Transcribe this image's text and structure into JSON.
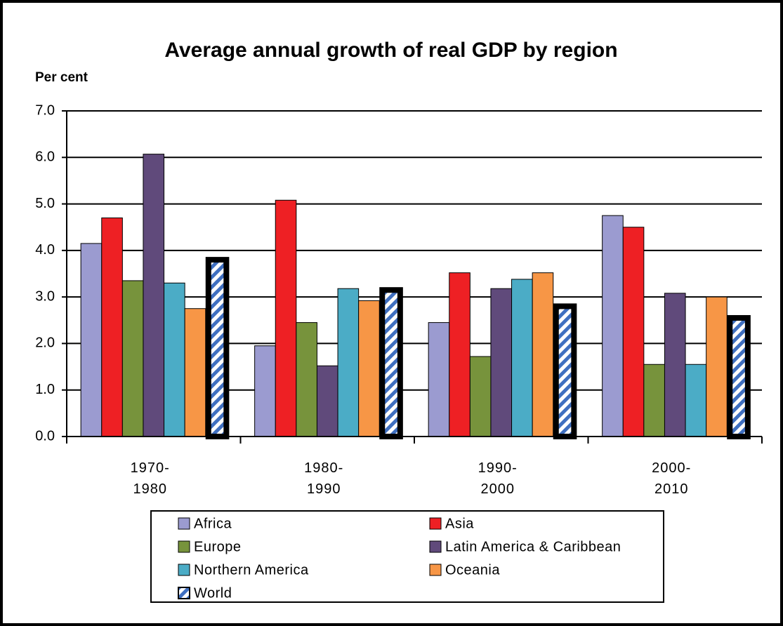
{
  "chart_data": {
    "type": "bar",
    "title": "Average annual growth of real GDP by region",
    "y_axis_label": "Per cent",
    "categories": [
      "1970-1980",
      "1980-1990",
      "1990-2000",
      "2000-2010"
    ],
    "series": [
      {
        "name": "Africa",
        "color": "#9b9bd0",
        "values": [
          4.15,
          1.95,
          2.45,
          4.75
        ]
      },
      {
        "name": "Asia",
        "color": "#ee2024",
        "values": [
          4.7,
          5.08,
          3.52,
          4.5
        ]
      },
      {
        "name": "Europe",
        "color": "#77933c",
        "values": [
          3.35,
          2.45,
          1.72,
          1.55
        ]
      },
      {
        "name": "Latin America & Caribbean",
        "color": "#604a7b",
        "values": [
          6.07,
          1.52,
          3.18,
          3.08
        ]
      },
      {
        "name": "Northern America",
        "color": "#4bacc6",
        "values": [
          3.3,
          3.18,
          3.38,
          1.55
        ]
      },
      {
        "name": "Oceania",
        "color": "#f79646",
        "values": [
          2.75,
          2.92,
          3.52,
          3.0
        ]
      },
      {
        "name": "World",
        "color": "#3f6fc0",
        "pattern": "hatch",
        "values": [
          3.8,
          3.15,
          2.8,
          2.55
        ]
      }
    ],
    "ylim": [
      0,
      7
    ],
    "yticks": [
      {
        "value": 0,
        "label": "0.0"
      },
      {
        "value": 1,
        "label": "1.0"
      },
      {
        "value": 2,
        "label": "2.0"
      },
      {
        "value": 3,
        "label": "3.0"
      },
      {
        "value": 4,
        "label": "4.0"
      },
      {
        "value": 5,
        "label": "5.0"
      },
      {
        "value": 6,
        "label": "6.0"
      },
      {
        "value": 7,
        "label": "7.0"
      }
    ],
    "grid": true,
    "legend": "bottom"
  }
}
